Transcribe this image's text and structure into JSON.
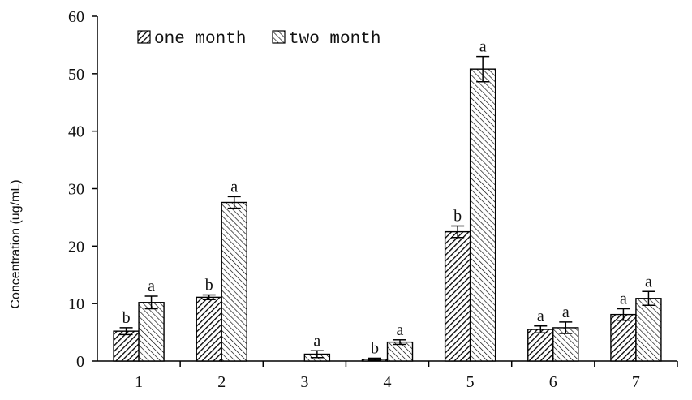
{
  "chart_data": {
    "type": "bar",
    "title": "",
    "xlabel": "",
    "ylabel": "Concentration (ug/mL)",
    "ylim": [
      0,
      60
    ],
    "yticks": [
      0,
      10,
      20,
      30,
      40,
      50,
      60
    ],
    "categories": [
      "1",
      "2",
      "3",
      "4",
      "5",
      "6",
      "7"
    ],
    "legend_position": "top-left",
    "grid": false,
    "series": [
      {
        "name": "one month",
        "pattern": "dense-diagonal-hatch",
        "color": "#000000",
        "values": [
          5.2,
          11.1,
          null,
          0.3,
          22.5,
          5.5,
          8.1
        ],
        "errors": [
          0.6,
          0.4,
          null,
          0.2,
          1.0,
          0.6,
          1.0
        ],
        "significance": [
          "b",
          "b",
          "",
          "b",
          "b",
          "a",
          "a"
        ]
      },
      {
        "name": "two month",
        "pattern": "light-diagonal-hatch",
        "color": "#000000",
        "values": [
          10.2,
          27.6,
          1.2,
          3.3,
          50.8,
          5.8,
          10.9
        ],
        "errors": [
          1.1,
          1.0,
          0.6,
          0.4,
          2.2,
          1.0,
          1.2
        ],
        "significance": [
          "a",
          "a",
          "a",
          "a",
          "a",
          "a",
          "a"
        ]
      }
    ]
  }
}
